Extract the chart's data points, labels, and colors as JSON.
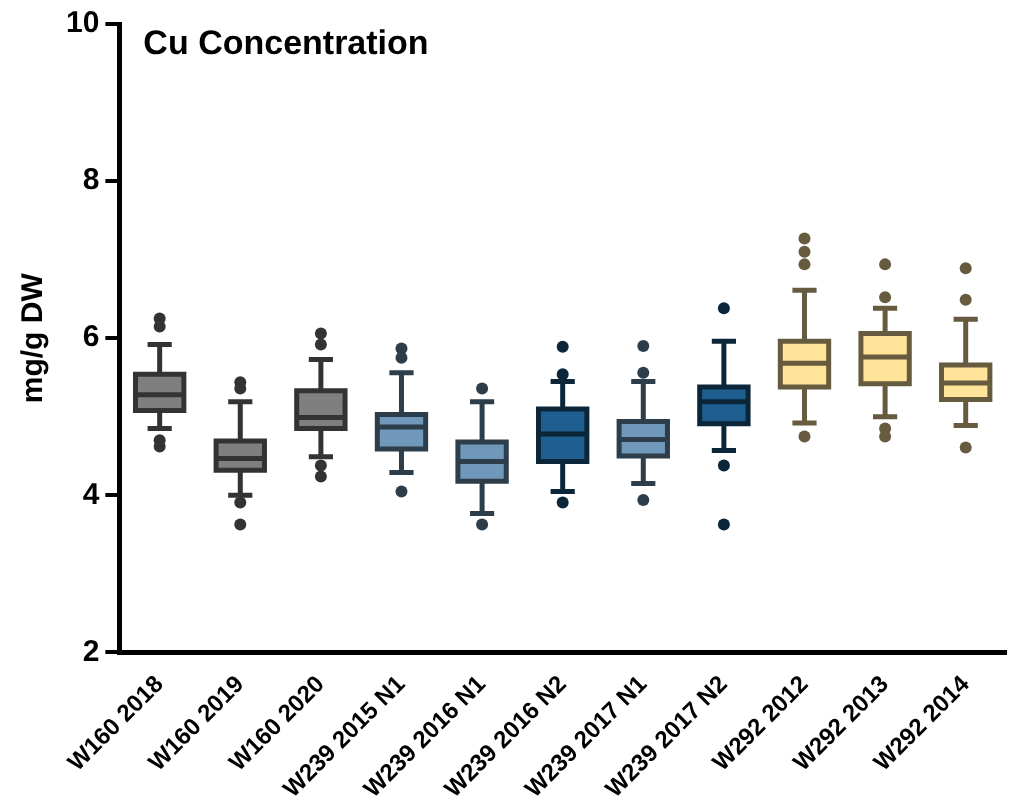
{
  "chart_data": {
    "type": "box",
    "title": "Cu Concentration",
    "ylabel": "mg/g DW",
    "categories": [
      "W160 2018",
      "W160 2019",
      "W160 2020",
      "W239 2015 N1",
      "W239 2016 N1",
      "W239 2016 N2",
      "W239 2017 N1",
      "W239 2017 N2",
      "W292 2012",
      "W292 2013",
      "W292 2014"
    ],
    "colors": [
      "#7f7f7f",
      "#7f7f7f",
      "#7f7f7f",
      "#7098ba",
      "#7098ba",
      "#1f5f8f",
      "#7098ba",
      "#1f5f8f",
      "#ffe49a",
      "#ffe49a",
      "#ffe49a"
    ],
    "boxes": [
      {
        "low": 4.85,
        "q1": 5.08,
        "median": 5.28,
        "q3": 5.54,
        "high": 5.92,
        "outliers": [
          6.25,
          6.15,
          4.7,
          4.62
        ]
      },
      {
        "low": 4.0,
        "q1": 4.32,
        "median": 4.47,
        "q3": 4.69,
        "high": 5.19,
        "outliers": [
          5.44,
          5.36,
          3.91,
          3.63
        ]
      },
      {
        "low": 4.49,
        "q1": 4.85,
        "median": 4.99,
        "q3": 5.33,
        "high": 5.73,
        "outliers": [
          6.06,
          5.92,
          4.38,
          4.24
        ]
      },
      {
        "low": 4.29,
        "q1": 4.59,
        "median": 4.87,
        "q3": 5.03,
        "high": 5.56,
        "outliers": [
          5.87,
          5.75,
          4.05
        ]
      },
      {
        "low": 3.77,
        "q1": 4.18,
        "median": 4.43,
        "q3": 4.68,
        "high": 5.19,
        "outliers": [
          5.36,
          3.63
        ]
      },
      {
        "low": 4.05,
        "q1": 4.43,
        "median": 4.78,
        "q3": 5.1,
        "high": 5.45,
        "outliers": [
          5.89,
          5.54,
          3.91
        ]
      },
      {
        "low": 4.15,
        "q1": 4.5,
        "median": 4.71,
        "q3": 4.94,
        "high": 5.45,
        "outliers": [
          5.9,
          5.56,
          3.94
        ]
      },
      {
        "low": 4.57,
        "q1": 4.91,
        "median": 5.19,
        "q3": 5.38,
        "high": 5.96,
        "outliers": [
          6.38,
          4.38,
          3.63
        ]
      },
      {
        "low": 4.92,
        "q1": 5.38,
        "median": 5.68,
        "q3": 5.96,
        "high": 6.61,
        "outliers": [
          7.27,
          7.1,
          6.94,
          4.75
        ]
      },
      {
        "low": 5.0,
        "q1": 5.42,
        "median": 5.76,
        "q3": 6.06,
        "high": 6.38,
        "outliers": [
          6.94,
          6.52,
          4.85,
          4.75
        ]
      },
      {
        "low": 4.89,
        "q1": 5.22,
        "median": 5.43,
        "q3": 5.66,
        "high": 6.24,
        "outliers": [
          6.89,
          6.49,
          4.61
        ]
      }
    ],
    "ylim": [
      2,
      10
    ],
    "yticks": [
      2,
      4,
      6,
      8,
      10
    ],
    "grid": false,
    "legend": false
  }
}
